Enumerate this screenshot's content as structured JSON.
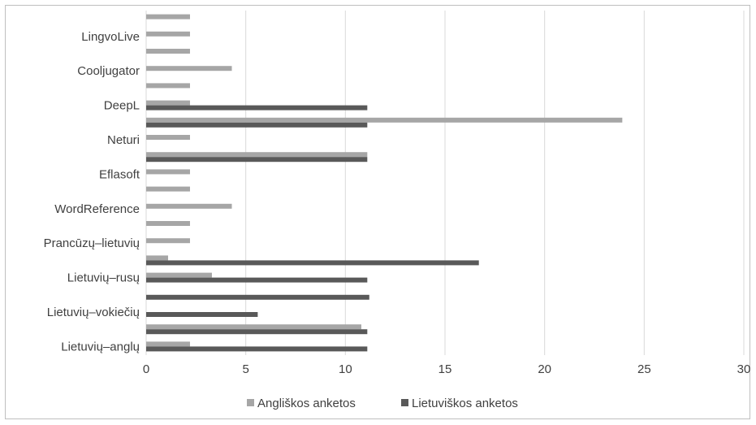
{
  "chart_data": {
    "type": "bar",
    "orientation": "horizontal",
    "categories": [
      "Lietuvių–anglų",
      "",
      "Lietuvių–vokiečių",
      "",
      "Lietuvių–rusų",
      "",
      "Prancūzų–lietuvių",
      "",
      "WordReference",
      "",
      "Eflasoft",
      "",
      "Neturi",
      "",
      "DeepL",
      "",
      "Cooljugator",
      "",
      "LingvoLive",
      ""
    ],
    "series": [
      {
        "name": "Angliškos anketos",
        "color": "#a6a6a6",
        "values": [
          2.2,
          10.8,
          0,
          0,
          3.3,
          1.1,
          2.2,
          2.2,
          4.3,
          2.2,
          2.2,
          11.1,
          2.2,
          23.9,
          2.2,
          2.2,
          4.3,
          2.2,
          2.2,
          2.2
        ]
      },
      {
        "name": "Lietuviškos anketos",
        "color": "#595959",
        "values": [
          11.1,
          11.1,
          5.6,
          11.2,
          11.1,
          16.7,
          0,
          0,
          0,
          0,
          0,
          11.1,
          0,
          11.1,
          11.1,
          0,
          0,
          0,
          0,
          0
        ]
      }
    ],
    "xlim": [
      0,
      30
    ],
    "xticks": [
      "0",
      "5",
      "10",
      "15",
      "20",
      "25",
      "30"
    ],
    "grid": true,
    "legend_position": "bottom",
    "title": "",
    "xlabel": "",
    "ylabel": ""
  }
}
